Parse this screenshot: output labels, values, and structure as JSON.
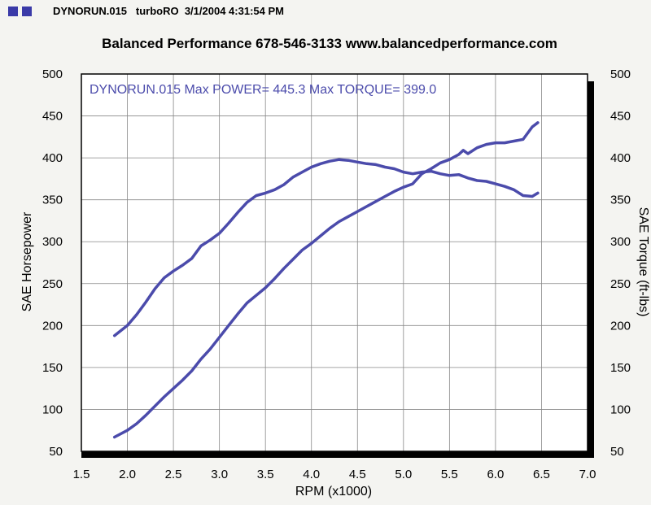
{
  "header": {
    "run_id": "DYNORUN.015",
    "vehicle": "turboRO",
    "datetime": "3/1/2004 4:31:54 PM",
    "badge_color": "#3a3aa8"
  },
  "chart_data": {
    "type": "line",
    "title": "Balanced Performance 678-546-3133 www.balancedperformance.com",
    "annotation": "DYNORUN.015  Max POWER= 445.3  Max TORQUE= 399.0",
    "xlabel": "RPM (x1000)",
    "ylabel": "SAE Horsepower",
    "y2label": "SAE Torque (ft-lbs)",
    "xlim": [
      1.5,
      7.0
    ],
    "ylim": [
      50,
      500
    ],
    "y2lim": [
      50,
      500
    ],
    "x_ticks": [
      "1.5",
      "2.0",
      "2.5",
      "3.0",
      "3.5",
      "4.0",
      "4.5",
      "5.0",
      "5.5",
      "6.0",
      "6.5",
      "7.0"
    ],
    "y_ticks": [
      "50",
      "100",
      "150",
      "200",
      "250",
      "300",
      "350",
      "400",
      "450",
      "500"
    ],
    "y2_ticks": [
      "50",
      "100",
      "150",
      "200",
      "250",
      "300",
      "350",
      "400",
      "450",
      "500"
    ],
    "grid": true,
    "line_color": "#4b4bab",
    "series": [
      {
        "x": [
          1.86,
          2.0,
          2.1,
          2.2,
          2.3,
          2.4,
          2.5,
          2.6,
          2.7,
          2.8,
          2.9,
          3.0,
          3.1,
          3.2,
          3.3,
          3.4,
          3.5,
          3.6,
          3.7,
          3.8,
          3.9,
          4.0,
          4.1,
          4.2,
          4.3,
          4.4,
          4.5,
          4.6,
          4.7,
          4.8,
          4.9,
          5.0,
          5.1,
          5.2,
          5.3,
          5.4,
          5.5,
          5.6,
          5.65,
          5.7,
          5.8,
          5.9,
          6.0,
          6.1,
          6.2,
          6.3,
          6.4,
          6.46
        ],
        "values": [
          67,
          75,
          83,
          93,
          104,
          115,
          125,
          135,
          146,
          160,
          172,
          186,
          200,
          214,
          227,
          236,
          245,
          256,
          268,
          279,
          290,
          298,
          307,
          316,
          324,
          330,
          336,
          342,
          348,
          354,
          360,
          365,
          369,
          381,
          387,
          394,
          398,
          404,
          409,
          405,
          412,
          416,
          418,
          418,
          420,
          422,
          437,
          442
        ]
      },
      {
        "x": [
          1.86,
          2.0,
          2.1,
          2.2,
          2.3,
          2.4,
          2.5,
          2.6,
          2.7,
          2.8,
          2.9,
          3.0,
          3.1,
          3.2,
          3.3,
          3.4,
          3.5,
          3.6,
          3.7,
          3.8,
          3.9,
          4.0,
          4.1,
          4.2,
          4.3,
          4.4,
          4.5,
          4.6,
          4.7,
          4.8,
          4.9,
          5.0,
          5.1,
          5.2,
          5.3,
          5.4,
          5.5,
          5.6,
          5.7,
          5.8,
          5.9,
          6.0,
          6.1,
          6.2,
          6.3,
          6.4,
          6.46
        ],
        "values": [
          188,
          200,
          213,
          228,
          244,
          257,
          265,
          272,
          280,
          295,
          302,
          310,
          322,
          335,
          347,
          355,
          358,
          362,
          368,
          377,
          383,
          389,
          393,
          396,
          398,
          397,
          395,
          393,
          392,
          389,
          387,
          383,
          381,
          383,
          384,
          381,
          379,
          380,
          376,
          373,
          372,
          369,
          366,
          362,
          355,
          354,
          358
        ]
      }
    ]
  }
}
